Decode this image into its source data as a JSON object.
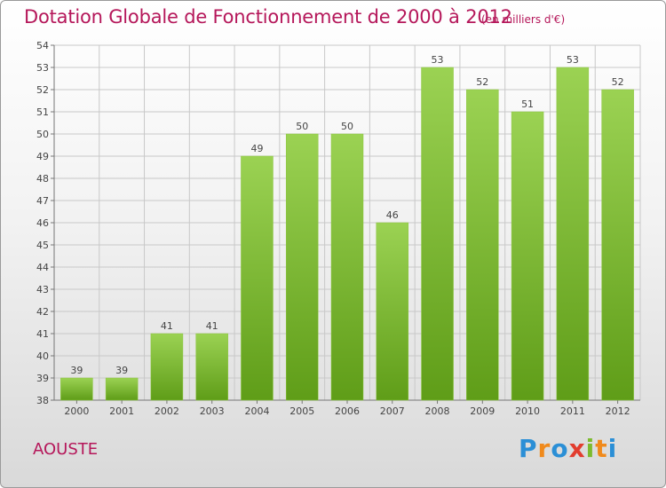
{
  "title": "Dotation Globale de Fonctionnement de 2000 à 2012",
  "subtitle": "(en milliers d'€)",
  "location": "AOUSTE",
  "logo": {
    "text": "Proxiti",
    "letters": [
      {
        "ch": "P",
        "color": "#2b8fd6"
      },
      {
        "ch": "r",
        "color": "#f08a1c"
      },
      {
        "ch": "o",
        "color": "#2b8fd6"
      },
      {
        "ch": "x",
        "color": "#e23d2e"
      },
      {
        "ch": "i",
        "color": "#7dbb2e"
      },
      {
        "ch": "t",
        "color": "#f08a1c"
      },
      {
        "ch": "i",
        "color": "#2b8fd6"
      }
    ]
  },
  "colors": {
    "bar_top": "#9bd253",
    "bar_bottom": "#5f9d18",
    "grid": "#c8c8c8",
    "accent": "#b5175a"
  },
  "chart_data": {
    "type": "bar",
    "title": "Dotation Globale de Fonctionnement de 2000 à 2012",
    "subtitle": "(en milliers d'€)",
    "categories": [
      "2000",
      "2001",
      "2002",
      "2003",
      "2004",
      "2005",
      "2006",
      "2007",
      "2008",
      "2009",
      "2010",
      "2011",
      "2012"
    ],
    "values": [
      39,
      39,
      41,
      41,
      49,
      50,
      50,
      46,
      53,
      52,
      51,
      53,
      52
    ],
    "ylim": [
      38,
      54
    ],
    "yticks": [
      38,
      39,
      40,
      41,
      42,
      43,
      44,
      45,
      46,
      47,
      48,
      49,
      50,
      51,
      52,
      53,
      54
    ],
    "grid": true,
    "data_labels": true,
    "xlabel": "",
    "ylabel": ""
  }
}
